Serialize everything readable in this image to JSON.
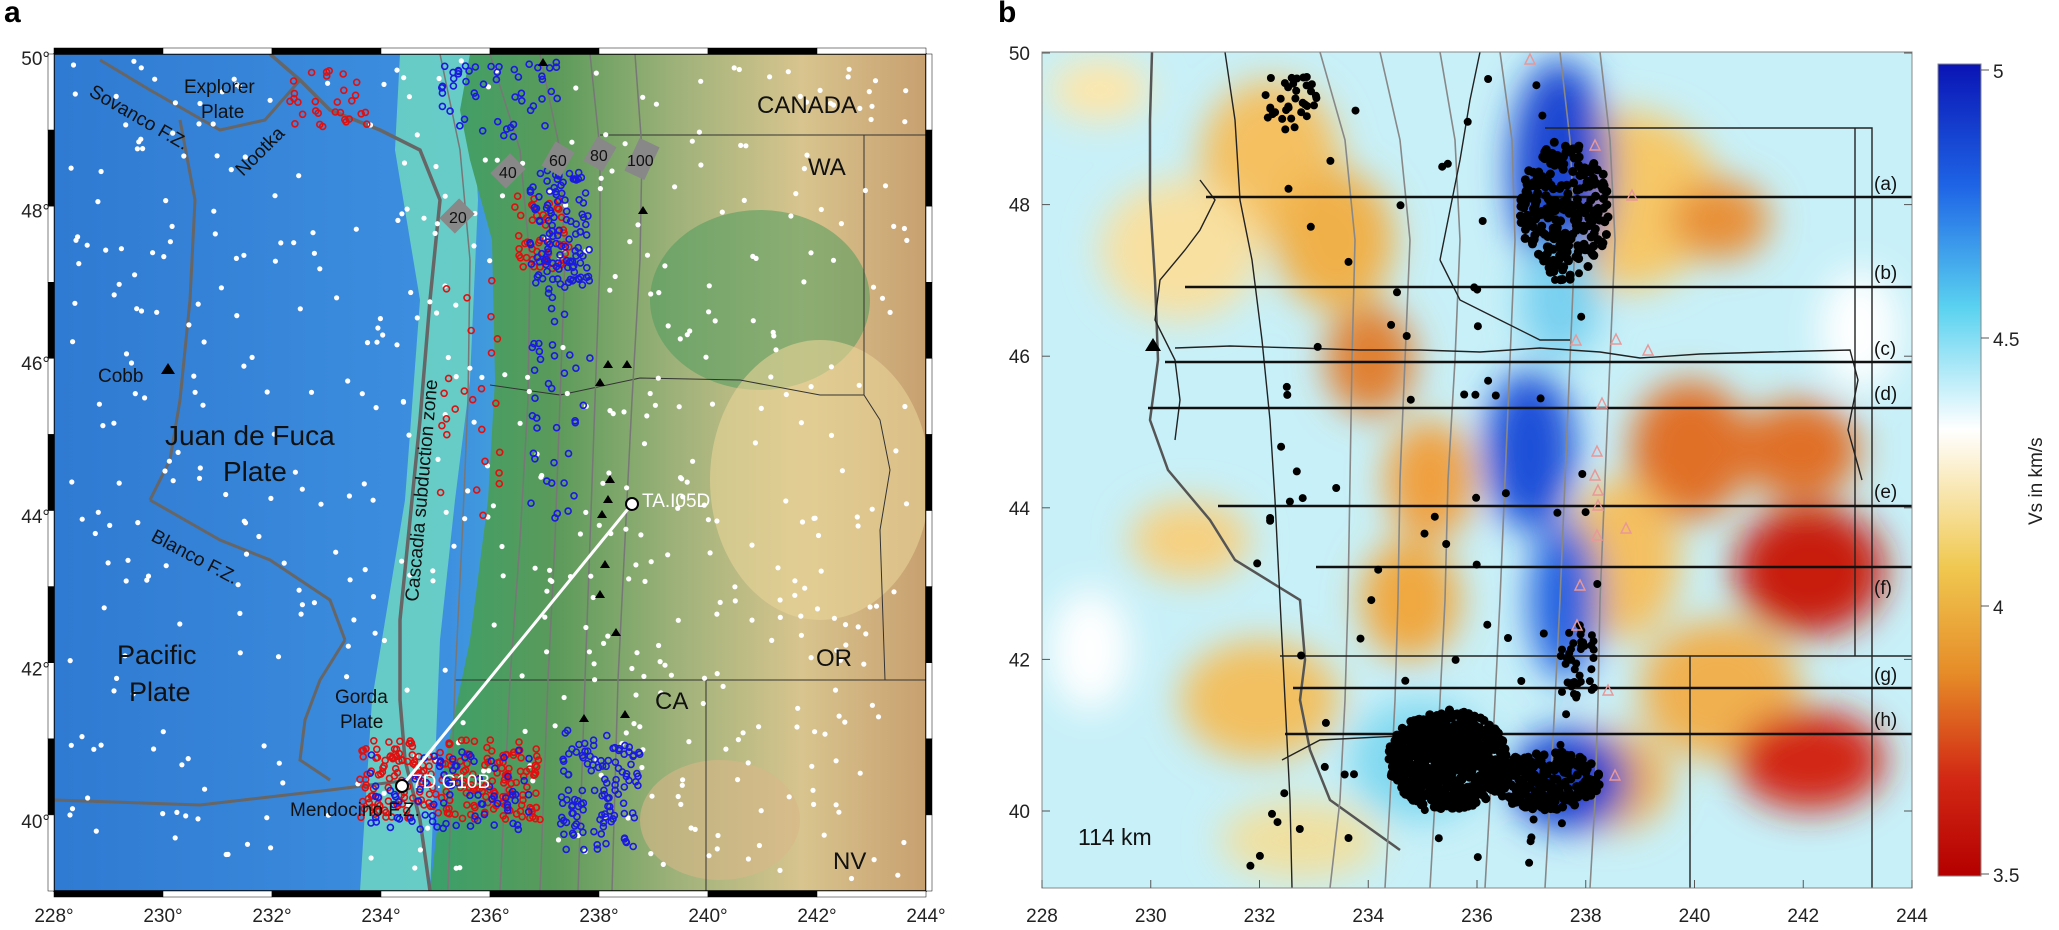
{
  "panels": {
    "a": {
      "letter": "a",
      "x_ticks": [
        "228°",
        "230°",
        "232°",
        "234°",
        "236°",
        "238°",
        "240°",
        "242°",
        "244°"
      ],
      "y_ticks": [
        "40°",
        "42°",
        "44°",
        "46°",
        "48°",
        "50°"
      ],
      "labels": {
        "canada": "CANADA",
        "wa": "WA",
        "or": "OR",
        "ca": "CA",
        "nv": "NV",
        "explorer": "Explorer",
        "explorer_plate": "Plate",
        "sovanco": "Sovanco F.Z.",
        "nootka": "Nootka",
        "cobb": "Cobb",
        "jdf_line1": "Juan de Fuca",
        "jdf_line2": "Plate",
        "cascadia": "Cascadia subduction zone",
        "blanco": "Blanco F.Z.",
        "pacific_line1": "Pacific",
        "pacific_line2": "Plate",
        "gorda_line1": "Gorda",
        "gorda_line2": "Plate",
        "mendocino": "Mendocino F.Z.",
        "station_ta": "TA.I05D",
        "station_7d": "7D.G10B"
      },
      "contours": [
        "20",
        "40",
        "60",
        "80",
        "100"
      ]
    },
    "b": {
      "letter": "b",
      "x_ticks": [
        "228",
        "230",
        "232",
        "234",
        "236",
        "238",
        "240",
        "242",
        "244"
      ],
      "y_ticks": [
        "40",
        "42",
        "44",
        "46",
        "48",
        "50"
      ],
      "depth_label": "114 km",
      "profiles": [
        "(a)",
        "(b)",
        "(c)",
        "(d)",
        "(e)",
        "(f)",
        "(g)",
        "(h)"
      ],
      "colorbar": {
        "title": "Vs in km/s",
        "ticks": [
          "5",
          "4.5",
          "4",
          "3.5"
        ],
        "colors": [
          "#0a14b4",
          "#1e64e6",
          "#5ad2f0",
          "#ffffff",
          "#f0c850",
          "#e68c28",
          "#d22814",
          "#b40000"
        ]
      }
    }
  }
}
